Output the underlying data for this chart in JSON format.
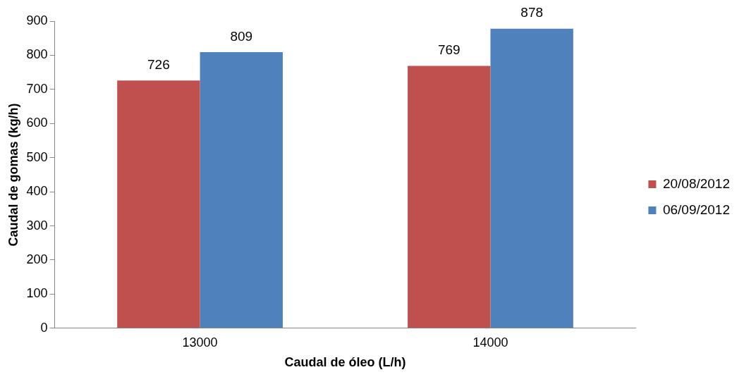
{
  "chart_data": {
    "type": "bar",
    "xlabel": "Caudal de óleo (L/h)",
    "ylabel": "Caudal de gomas (kg/h)",
    "categories": [
      "13000",
      "14000"
    ],
    "series": [
      {
        "name": "20/08/2012",
        "color": "#c0504d",
        "values": [
          726,
          769
        ]
      },
      {
        "name": "06/09/2012",
        "color": "#4f81bd",
        "values": [
          809,
          878
        ]
      }
    ],
    "ylim": [
      0,
      900
    ],
    "yticks": [
      0,
      100,
      200,
      300,
      400,
      500,
      600,
      700,
      800,
      900
    ],
    "grid": false,
    "legend": "right",
    "data_labels": true
  }
}
